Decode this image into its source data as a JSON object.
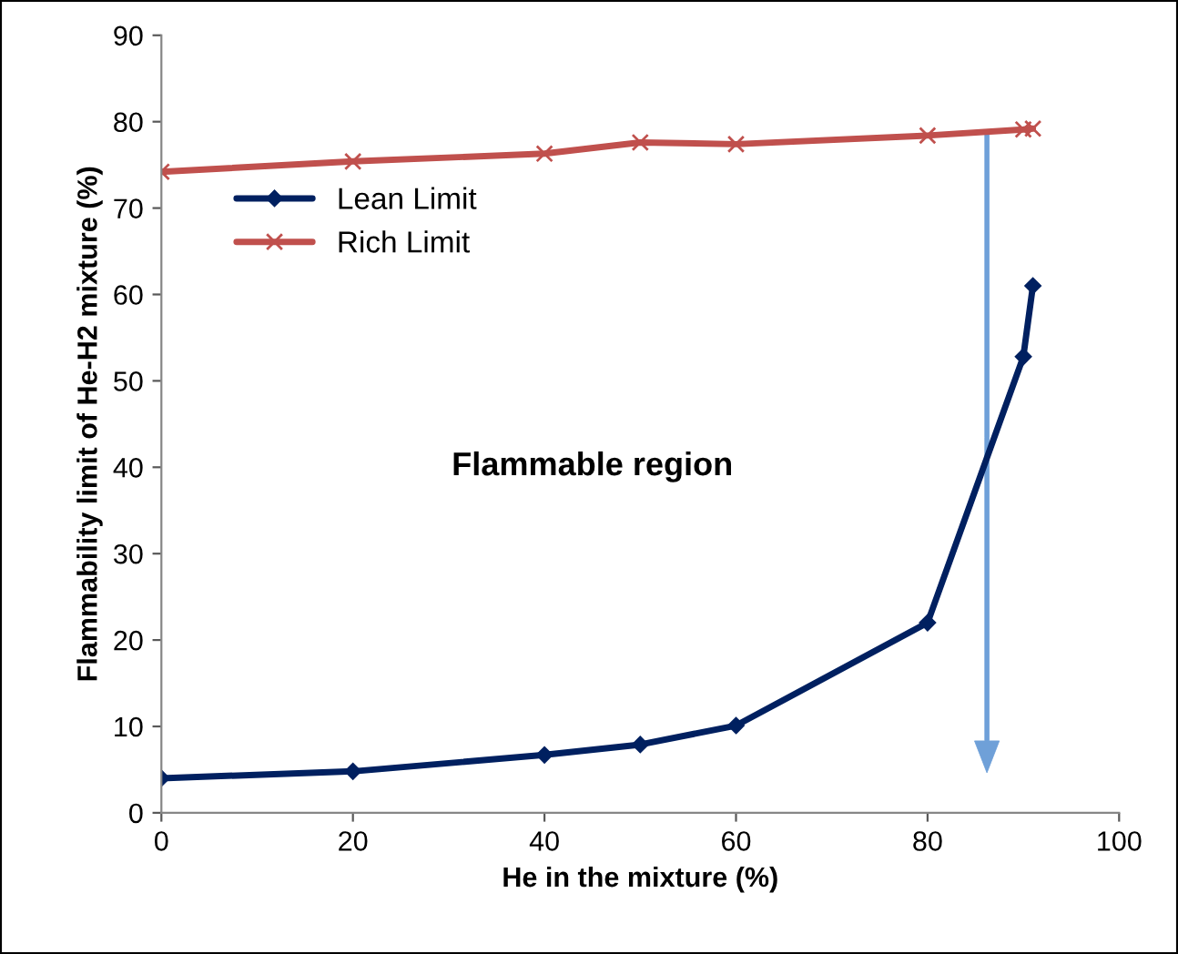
{
  "chart_data": {
    "type": "line",
    "xlabel": "He in the mixture (%)",
    "ylabel": "Flammability limit of He-H2 mixture (%)",
    "annotations": [
      "Flammable region"
    ],
    "series": [
      {
        "name": "Lean Limit",
        "color": "#002060",
        "marker": "diamond",
        "x": [
          0,
          20,
          40,
          50,
          60,
          80,
          90,
          91
        ],
        "values": [
          4,
          4.8,
          6.7,
          7.9,
          10.1,
          22,
          52.8,
          61
        ]
      },
      {
        "name": "Rich Limit",
        "color": "#c0504d",
        "marker": "cross",
        "x": [
          0,
          20,
          40,
          50,
          60,
          80,
          90,
          91
        ],
        "values": [
          74.2,
          75.4,
          76.3,
          77.6,
          77.4,
          78.4,
          79.1,
          79.2
        ]
      }
    ],
    "xlim": [
      0,
      100
    ],
    "xticks": [
      0,
      20,
      40,
      60,
      80,
      100
    ],
    "ylim": [
      0,
      90
    ],
    "yticks": [
      0,
      10,
      20,
      30,
      40,
      50,
      60,
      70,
      80,
      90
    ],
    "grid": false,
    "legend": "top left"
  }
}
